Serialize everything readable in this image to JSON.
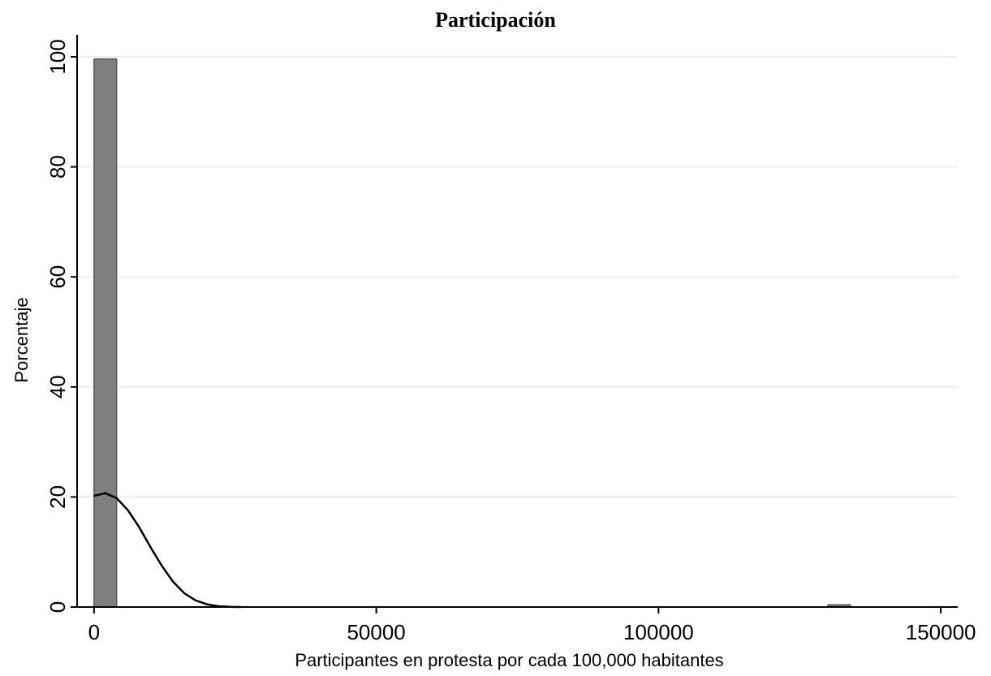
{
  "chart_data": {
    "type": "bar",
    "title": "Participación",
    "xlabel": "Participantes en protesta por cada 100,000 habitantes",
    "ylabel": "Porcentaje",
    "xlim": [
      -3000,
      153000
    ],
    "ylim": [
      0,
      100
    ],
    "x_ticks": [
      0,
      50000,
      100000,
      150000
    ],
    "y_ticks": [
      0,
      20,
      40,
      60,
      80,
      100
    ],
    "grid": true,
    "bins": [
      {
        "x0": 0,
        "x1": 4000,
        "value": 99.6
      },
      {
        "x0": 130000,
        "x1": 134000,
        "value": 0.4
      }
    ],
    "density_curve": {
      "x": [
        0,
        2000,
        4000,
        6000,
        8000,
        10000,
        12000,
        14000,
        16000,
        18000,
        20000,
        22000,
        24000,
        26000
      ],
      "y": [
        20.2,
        20.7,
        19.8,
        17.6,
        14.5,
        10.9,
        7.5,
        4.6,
        2.5,
        1.2,
        0.5,
        0.15,
        0.05,
        0.0
      ]
    },
    "colors": {
      "bar": "#808080",
      "bar_edge": "#555555",
      "curve": "#000000",
      "grid": "#e6eef0"
    }
  }
}
